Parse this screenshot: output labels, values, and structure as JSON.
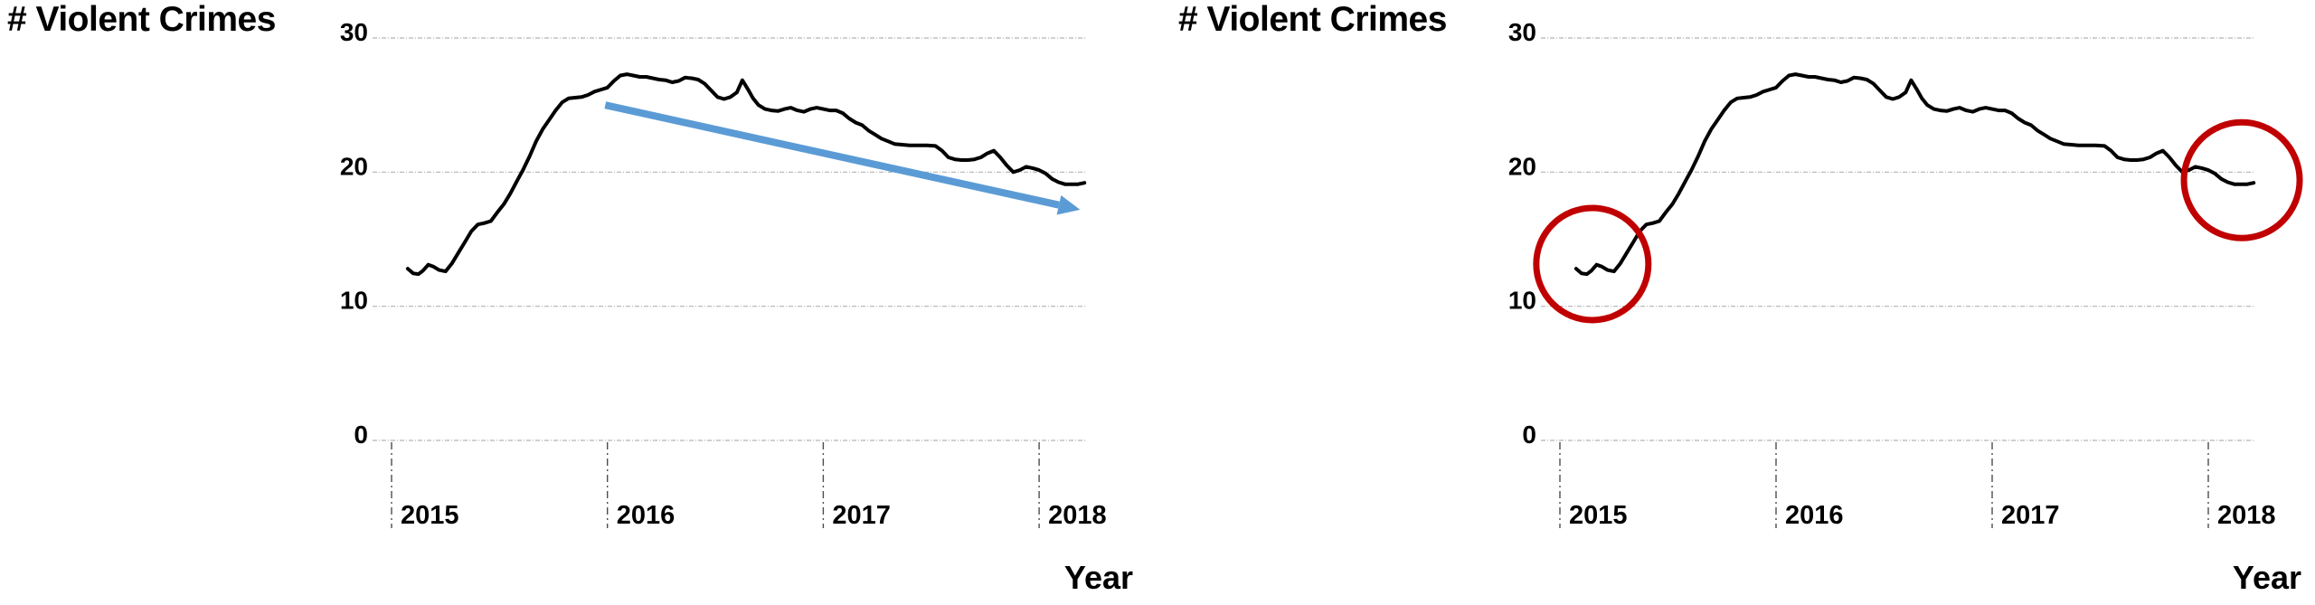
{
  "page": {
    "background": "#ffffff"
  },
  "palette": {
    "line": "#000000",
    "arrow_blue": "#5B9BD5",
    "circle_red": "#C00000",
    "gridline": "#b3b3b3",
    "axis_tick": "#4d4d4d",
    "text": "#000000"
  },
  "chart_data": [
    {
      "type": "line",
      "title": "# Violent Crimes",
      "xlabel": "Year",
      "ylabel": "# Violent Crimes",
      "x_ticks": [
        2015,
        2016,
        2017,
        2018
      ],
      "x_tick_labels": [
        "2015",
        "2016",
        "2017",
        "2018"
      ],
      "y_ticks": [
        0,
        10,
        20,
        30
      ],
      "y_tick_labels": [
        "0",
        "10",
        "20",
        "30"
      ],
      "ylim": [
        0,
        30
      ],
      "xlim": [
        2015.0,
        2018.25
      ],
      "grid": "horizontal-dashed",
      "legend": "none",
      "series": [
        {
          "name": "violent-crimes",
          "color": "#000000",
          "points": [
            [
              2015.075,
              12.8
            ],
            [
              2015.1,
              12.45
            ],
            [
              2015.125,
              12.4
            ],
            [
              2015.145,
              12.65
            ],
            [
              2015.17,
              13.1
            ],
            [
              2015.195,
              12.95
            ],
            [
              2015.22,
              12.7
            ],
            [
              2015.25,
              12.6
            ],
            [
              2015.28,
              13.2
            ],
            [
              2015.31,
              14.0
            ],
            [
              2015.34,
              14.8
            ],
            [
              2015.37,
              15.6
            ],
            [
              2015.4,
              16.1
            ],
            [
              2015.43,
              16.2
            ],
            [
              2015.46,
              16.35
            ],
            [
              2015.49,
              17.0
            ],
            [
              2015.52,
              17.6
            ],
            [
              2015.55,
              18.4
            ],
            [
              2015.58,
              19.3
            ],
            [
              2015.61,
              20.2
            ],
            [
              2015.64,
              21.2
            ],
            [
              2015.67,
              22.3
            ],
            [
              2015.7,
              23.2
            ],
            [
              2015.73,
              23.9
            ],
            [
              2015.76,
              24.6
            ],
            [
              2015.79,
              25.2
            ],
            [
              2015.82,
              25.5
            ],
            [
              2015.85,
              25.55
            ],
            [
              2015.88,
              25.6
            ],
            [
              2015.91,
              25.75
            ],
            [
              2015.94,
              26.0
            ],
            [
              2015.97,
              26.15
            ],
            [
              2016.0,
              26.3
            ],
            [
              2016.03,
              26.8
            ],
            [
              2016.06,
              27.2
            ],
            [
              2016.09,
              27.3
            ],
            [
              2016.12,
              27.2
            ],
            [
              2016.15,
              27.1
            ],
            [
              2016.18,
              27.1
            ],
            [
              2016.21,
              27.0
            ],
            [
              2016.24,
              26.9
            ],
            [
              2016.27,
              26.85
            ],
            [
              2016.3,
              26.7
            ],
            [
              2016.33,
              26.8
            ],
            [
              2016.36,
              27.05
            ],
            [
              2016.39,
              27.0
            ],
            [
              2016.42,
              26.9
            ],
            [
              2016.45,
              26.6
            ],
            [
              2016.48,
              26.1
            ],
            [
              2016.51,
              25.6
            ],
            [
              2016.54,
              25.45
            ],
            [
              2016.57,
              25.6
            ],
            [
              2016.6,
              25.95
            ],
            [
              2016.625,
              26.85
            ],
            [
              2016.65,
              26.2
            ],
            [
              2016.675,
              25.5
            ],
            [
              2016.7,
              25.0
            ],
            [
              2016.73,
              24.7
            ],
            [
              2016.76,
              24.6
            ],
            [
              2016.79,
              24.55
            ],
            [
              2016.82,
              24.7
            ],
            [
              2016.85,
              24.8
            ],
            [
              2016.88,
              24.6
            ],
            [
              2016.91,
              24.5
            ],
            [
              2016.94,
              24.7
            ],
            [
              2016.97,
              24.8
            ],
            [
              2017.0,
              24.7
            ],
            [
              2017.03,
              24.6
            ],
            [
              2017.06,
              24.6
            ],
            [
              2017.09,
              24.4
            ],
            [
              2017.12,
              24.0
            ],
            [
              2017.15,
              23.7
            ],
            [
              2017.18,
              23.5
            ],
            [
              2017.21,
              23.1
            ],
            [
              2017.24,
              22.8
            ],
            [
              2017.27,
              22.5
            ],
            [
              2017.3,
              22.3
            ],
            [
              2017.33,
              22.1
            ],
            [
              2017.36,
              22.05
            ],
            [
              2017.4,
              22.0
            ],
            [
              2017.44,
              22.0
            ],
            [
              2017.48,
              22.0
            ],
            [
              2017.52,
              21.95
            ],
            [
              2017.55,
              21.6
            ],
            [
              2017.58,
              21.1
            ],
            [
              2017.61,
              20.95
            ],
            [
              2017.64,
              20.9
            ],
            [
              2017.67,
              20.9
            ],
            [
              2017.7,
              20.95
            ],
            [
              2017.73,
              21.1
            ],
            [
              2017.76,
              21.4
            ],
            [
              2017.79,
              21.6
            ],
            [
              2017.82,
              21.1
            ],
            [
              2017.85,
              20.5
            ],
            [
              2017.88,
              20.0
            ],
            [
              2017.91,
              20.15
            ],
            [
              2017.94,
              20.4
            ],
            [
              2017.97,
              20.3
            ],
            [
              2018.0,
              20.15
            ],
            [
              2018.03,
              19.9
            ],
            [
              2018.06,
              19.5
            ],
            [
              2018.09,
              19.25
            ],
            [
              2018.12,
              19.1
            ],
            [
              2018.15,
              19.1
            ],
            [
              2018.18,
              19.1
            ],
            [
              2018.21,
              19.2
            ]
          ]
        }
      ],
      "annotations": [
        {
          "type": "arrow",
          "label": "downward-trend-arrow",
          "color": "#5B9BD5",
          "from": [
            2015.99,
            25.0
          ],
          "to": [
            2018.19,
            17.2
          ]
        }
      ]
    },
    {
      "type": "line",
      "title": "# Violent Crimes",
      "xlabel": "Year",
      "ylabel": "# Violent Crimes",
      "x_ticks": [
        2015,
        2016,
        2017,
        2018
      ],
      "x_tick_labels": [
        "2015",
        "2016",
        "2017",
        "2018"
      ],
      "y_ticks": [
        0,
        10,
        20,
        30
      ],
      "y_tick_labels": [
        "0",
        "10",
        "20",
        "30"
      ],
      "ylim": [
        0,
        30
      ],
      "xlim": [
        2015.0,
        2018.25
      ],
      "grid": "horizontal-dashed",
      "legend": "none",
      "series": [
        {
          "name": "violent-crimes",
          "color": "#000000",
          "points": [
            [
              2015.075,
              12.8
            ],
            [
              2015.1,
              12.45
            ],
            [
              2015.125,
              12.4
            ],
            [
              2015.145,
              12.65
            ],
            [
              2015.17,
              13.1
            ],
            [
              2015.195,
              12.95
            ],
            [
              2015.22,
              12.7
            ],
            [
              2015.25,
              12.6
            ],
            [
              2015.28,
              13.2
            ],
            [
              2015.31,
              14.0
            ],
            [
              2015.34,
              14.8
            ],
            [
              2015.37,
              15.6
            ],
            [
              2015.4,
              16.1
            ],
            [
              2015.43,
              16.2
            ],
            [
              2015.46,
              16.35
            ],
            [
              2015.49,
              17.0
            ],
            [
              2015.52,
              17.6
            ],
            [
              2015.55,
              18.4
            ],
            [
              2015.58,
              19.3
            ],
            [
              2015.61,
              20.2
            ],
            [
              2015.64,
              21.2
            ],
            [
              2015.67,
              22.3
            ],
            [
              2015.7,
              23.2
            ],
            [
              2015.73,
              23.9
            ],
            [
              2015.76,
              24.6
            ],
            [
              2015.79,
              25.2
            ],
            [
              2015.82,
              25.5
            ],
            [
              2015.85,
              25.55
            ],
            [
              2015.88,
              25.6
            ],
            [
              2015.91,
              25.75
            ],
            [
              2015.94,
              26.0
            ],
            [
              2015.97,
              26.15
            ],
            [
              2016.0,
              26.3
            ],
            [
              2016.03,
              26.8
            ],
            [
              2016.06,
              27.2
            ],
            [
              2016.09,
              27.3
            ],
            [
              2016.12,
              27.2
            ],
            [
              2016.15,
              27.1
            ],
            [
              2016.18,
              27.1
            ],
            [
              2016.21,
              27.0
            ],
            [
              2016.24,
              26.9
            ],
            [
              2016.27,
              26.85
            ],
            [
              2016.3,
              26.7
            ],
            [
              2016.33,
              26.8
            ],
            [
              2016.36,
              27.05
            ],
            [
              2016.39,
              27.0
            ],
            [
              2016.42,
              26.9
            ],
            [
              2016.45,
              26.6
            ],
            [
              2016.48,
              26.1
            ],
            [
              2016.51,
              25.6
            ],
            [
              2016.54,
              25.45
            ],
            [
              2016.57,
              25.6
            ],
            [
              2016.6,
              25.95
            ],
            [
              2016.625,
              26.85
            ],
            [
              2016.65,
              26.2
            ],
            [
              2016.675,
              25.5
            ],
            [
              2016.7,
              25.0
            ],
            [
              2016.73,
              24.7
            ],
            [
              2016.76,
              24.6
            ],
            [
              2016.79,
              24.55
            ],
            [
              2016.82,
              24.7
            ],
            [
              2016.85,
              24.8
            ],
            [
              2016.88,
              24.6
            ],
            [
              2016.91,
              24.5
            ],
            [
              2016.94,
              24.7
            ],
            [
              2016.97,
              24.8
            ],
            [
              2017.0,
              24.7
            ],
            [
              2017.03,
              24.6
            ],
            [
              2017.06,
              24.6
            ],
            [
              2017.09,
              24.4
            ],
            [
              2017.12,
              24.0
            ],
            [
              2017.15,
              23.7
            ],
            [
              2017.18,
              23.5
            ],
            [
              2017.21,
              23.1
            ],
            [
              2017.24,
              22.8
            ],
            [
              2017.27,
              22.5
            ],
            [
              2017.3,
              22.3
            ],
            [
              2017.33,
              22.1
            ],
            [
              2017.36,
              22.05
            ],
            [
              2017.4,
              22.0
            ],
            [
              2017.44,
              22.0
            ],
            [
              2017.48,
              22.0
            ],
            [
              2017.52,
              21.95
            ],
            [
              2017.55,
              21.6
            ],
            [
              2017.58,
              21.1
            ],
            [
              2017.61,
              20.95
            ],
            [
              2017.64,
              20.9
            ],
            [
              2017.67,
              20.9
            ],
            [
              2017.7,
              20.95
            ],
            [
              2017.73,
              21.1
            ],
            [
              2017.76,
              21.4
            ],
            [
              2017.79,
              21.6
            ],
            [
              2017.82,
              21.1
            ],
            [
              2017.85,
              20.5
            ],
            [
              2017.88,
              20.0
            ],
            [
              2017.91,
              20.15
            ],
            [
              2017.94,
              20.4
            ],
            [
              2017.97,
              20.3
            ],
            [
              2018.0,
              20.15
            ],
            [
              2018.03,
              19.9
            ],
            [
              2018.06,
              19.5
            ],
            [
              2018.09,
              19.25
            ],
            [
              2018.12,
              19.1
            ],
            [
              2018.15,
              19.1
            ],
            [
              2018.18,
              19.1
            ],
            [
              2018.21,
              19.2
            ]
          ]
        }
      ],
      "annotations": [
        {
          "type": "circle",
          "label": "highlight-circle-start",
          "color": "#C00000",
          "center": [
            2015.15,
            13.15
          ],
          "radius_px": 62
        },
        {
          "type": "circle",
          "label": "highlight-circle-end",
          "color": "#C00000",
          "center": [
            2018.155,
            19.4
          ],
          "radius_px": 64
        }
      ]
    }
  ]
}
